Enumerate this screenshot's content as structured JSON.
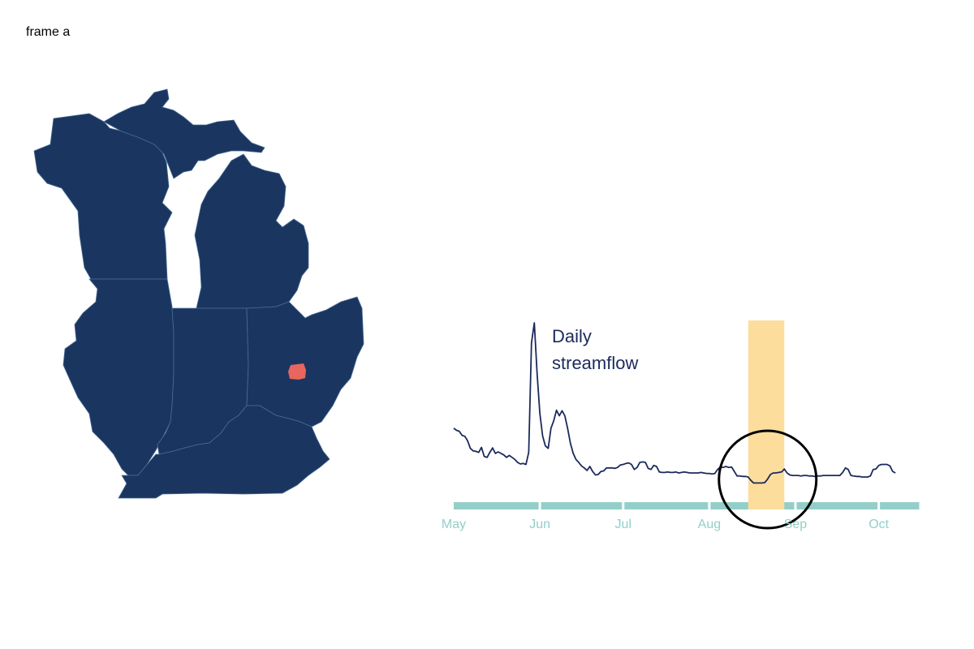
{
  "frame": {
    "label": "frame a"
  },
  "colors": {
    "states": "#1a3660",
    "state_border": "#4a6c93",
    "site": "#e8665e",
    "line": "#1b2a5c",
    "timeline": "#93cfc8",
    "highlight": "#fddd9c",
    "circle": "#000000"
  },
  "map": {
    "states_shown": [
      "Wisconsin",
      "Michigan",
      "Illinois",
      "Indiana",
      "Ohio",
      "Kentucky"
    ],
    "highlighted_site_state": "Ohio"
  },
  "chart_data": {
    "type": "line",
    "title": "",
    "annotation": [
      "Daily",
      "streamflow"
    ],
    "x_ticks": [
      "May",
      "Jun",
      "Jul",
      "Aug",
      "Sep",
      "Oct"
    ],
    "x_range": [
      "05-01",
      "10-16"
    ],
    "grid": false,
    "y_axis_shown": false,
    "series": [
      {
        "name": "",
        "points": [
          [
            "05-01",
            11.0
          ],
          [
            "05-02",
            10.6
          ],
          [
            "05-03",
            10.4
          ],
          [
            "05-04",
            9.6
          ],
          [
            "05-05",
            9.4
          ],
          [
            "05-06",
            8.5
          ],
          [
            "05-07",
            7.0
          ],
          [
            "05-08",
            6.5
          ],
          [
            "05-09",
            6.4
          ],
          [
            "05-10",
            6.2
          ],
          [
            "05-11",
            7.2
          ],
          [
            "05-12",
            5.4
          ],
          [
            "05-13",
            5.2
          ],
          [
            "05-14",
            6.2
          ],
          [
            "05-15",
            7.1
          ],
          [
            "05-16",
            6.0
          ],
          [
            "05-17",
            6.3
          ],
          [
            "05-18",
            6.0
          ],
          [
            "05-19",
            5.7
          ],
          [
            "05-20",
            5.2
          ],
          [
            "05-21",
            5.6
          ],
          [
            "05-22",
            5.2
          ],
          [
            "05-23",
            4.8
          ],
          [
            "05-24",
            4.2
          ],
          [
            "05-25",
            3.9
          ],
          [
            "05-26",
            4.0
          ],
          [
            "05-27",
            3.8
          ],
          [
            "05-28",
            6.2
          ],
          [
            "05-29",
            28.0
          ],
          [
            "05-30",
            32.0
          ],
          [
            "05-31",
            22.0
          ],
          [
            "06-01",
            14.0
          ],
          [
            "06-02",
            9.5
          ],
          [
            "06-03",
            7.5
          ],
          [
            "06-04",
            7.0
          ],
          [
            "06-05",
            11.0
          ],
          [
            "06-06",
            12.5
          ],
          [
            "06-07",
            14.6
          ],
          [
            "06-08",
            13.5
          ],
          [
            "06-09",
            14.5
          ],
          [
            "06-10",
            13.5
          ],
          [
            "06-11",
            11.0
          ],
          [
            "06-12",
            8.0
          ],
          [
            "06-13",
            6.0
          ],
          [
            "06-14",
            4.8
          ],
          [
            "06-15",
            4.2
          ],
          [
            "06-16",
            3.5
          ],
          [
            "06-17",
            3.1
          ],
          [
            "06-18",
            2.6
          ],
          [
            "06-19",
            3.4
          ],
          [
            "06-20",
            2.4
          ],
          [
            "06-21",
            1.7
          ],
          [
            "06-22",
            1.8
          ],
          [
            "06-23",
            2.4
          ],
          [
            "06-24",
            2.5
          ],
          [
            "06-25",
            3.1
          ],
          [
            "06-26",
            3.1
          ],
          [
            "06-27",
            3.1
          ],
          [
            "06-28",
            3.0
          ],
          [
            "06-29",
            3.2
          ],
          [
            "06-30",
            3.7
          ],
          [
            "07-01",
            3.8
          ],
          [
            "07-02",
            4.0
          ],
          [
            "07-03",
            4.1
          ],
          [
            "07-04",
            3.8
          ],
          [
            "07-05",
            2.8
          ],
          [
            "07-06",
            3.2
          ],
          [
            "07-07",
            4.2
          ],
          [
            "07-08",
            4.3
          ],
          [
            "07-09",
            4.2
          ],
          [
            "07-10",
            3.0
          ],
          [
            "07-11",
            2.8
          ],
          [
            "07-12",
            3.6
          ],
          [
            "07-13",
            3.4
          ],
          [
            "07-14",
            2.3
          ],
          [
            "07-15",
            2.2
          ],
          [
            "07-16",
            2.2
          ],
          [
            "07-17",
            2.3
          ],
          [
            "07-18",
            2.2
          ],
          [
            "07-19",
            2.2
          ],
          [
            "07-20",
            2.3
          ],
          [
            "07-21",
            2.1
          ],
          [
            "07-22",
            2.2
          ],
          [
            "07-23",
            2.3
          ],
          [
            "07-24",
            2.2
          ],
          [
            "07-25",
            2.1
          ],
          [
            "07-26",
            2.1
          ],
          [
            "07-27",
            2.1
          ],
          [
            "07-28",
            2.1
          ],
          [
            "07-29",
            2.2
          ],
          [
            "07-30",
            2.1
          ],
          [
            "07-31",
            2.0
          ],
          [
            "08-01",
            2.0
          ],
          [
            "08-02",
            1.9
          ],
          [
            "08-03",
            2.0
          ],
          [
            "08-04",
            2.8
          ],
          [
            "08-05",
            3.3
          ],
          [
            "08-06",
            3.2
          ],
          [
            "08-07",
            3.4
          ],
          [
            "08-08",
            3.2
          ],
          [
            "08-09",
            3.3
          ],
          [
            "08-10",
            2.4
          ],
          [
            "08-11",
            1.5
          ],
          [
            "08-12",
            1.5
          ],
          [
            "08-13",
            1.4
          ],
          [
            "08-14",
            1.4
          ],
          [
            "08-15",
            1.3
          ],
          [
            "08-16",
            0.6
          ],
          [
            "08-17",
            0.1
          ],
          [
            "08-18",
            0.1
          ],
          [
            "08-19",
            0.1
          ],
          [
            "08-20",
            0.1
          ],
          [
            "08-21",
            0.2
          ],
          [
            "08-22",
            0.9
          ],
          [
            "08-23",
            1.8
          ],
          [
            "08-24",
            2.1
          ],
          [
            "08-25",
            2.1
          ],
          [
            "08-26",
            2.2
          ],
          [
            "08-27",
            2.3
          ],
          [
            "08-28",
            2.9
          ],
          [
            "08-29",
            2.1
          ],
          [
            "08-30",
            1.7
          ],
          [
            "08-31",
            1.6
          ],
          [
            "09-01",
            1.6
          ],
          [
            "09-02",
            1.6
          ],
          [
            "09-03",
            1.5
          ],
          [
            "09-04",
            1.6
          ],
          [
            "09-05",
            1.6
          ],
          [
            "09-06",
            1.5
          ],
          [
            "09-07",
            1.5
          ],
          [
            "09-08",
            1.4
          ],
          [
            "09-09",
            1.5
          ],
          [
            "09-10",
            1.5
          ],
          [
            "09-11",
            1.6
          ],
          [
            "09-12",
            1.6
          ],
          [
            "09-13",
            1.6
          ],
          [
            "09-14",
            1.6
          ],
          [
            "09-15",
            1.6
          ],
          [
            "09-16",
            1.6
          ],
          [
            "09-17",
            1.6
          ],
          [
            "09-18",
            2.2
          ],
          [
            "09-19",
            3.1
          ],
          [
            "09-20",
            2.8
          ],
          [
            "09-21",
            1.6
          ],
          [
            "09-22",
            1.5
          ],
          [
            "09-23",
            1.4
          ],
          [
            "09-24",
            1.4
          ],
          [
            "09-25",
            1.3
          ],
          [
            "09-26",
            1.3
          ],
          [
            "09-27",
            1.3
          ],
          [
            "09-28",
            1.5
          ],
          [
            "09-29",
            2.8
          ],
          [
            "09-30",
            2.9
          ],
          [
            "10-01",
            3.6
          ],
          [
            "10-02",
            3.8
          ],
          [
            "10-03",
            3.8
          ],
          [
            "10-04",
            3.8
          ],
          [
            "10-05",
            3.5
          ],
          [
            "10-06",
            2.4
          ],
          [
            "10-07",
            2.1
          ]
        ]
      }
    ],
    "highlight_range": [
      "08-15",
      "08-28"
    ],
    "circle_center": [
      "08-22",
      0.8
    ]
  }
}
